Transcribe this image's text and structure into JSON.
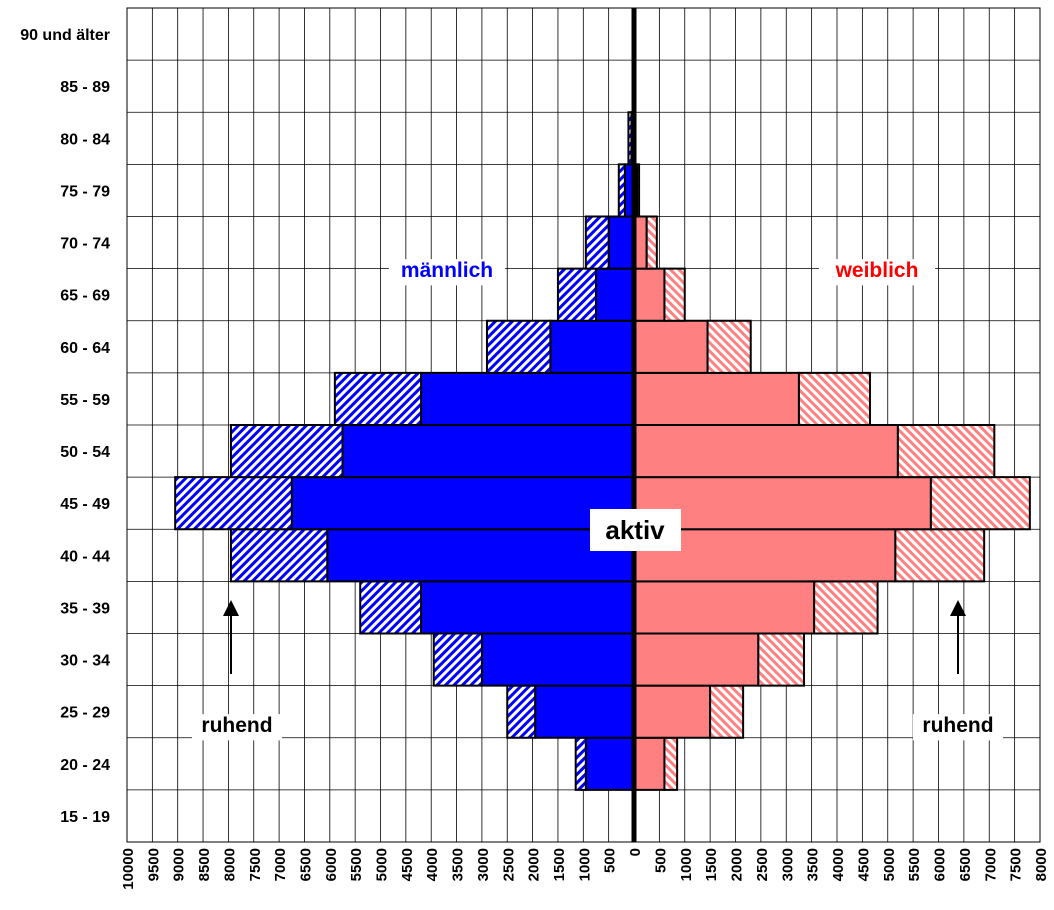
{
  "chart_data": {
    "type": "bar",
    "orientation": "horizontal",
    "layout": "population-pyramid",
    "categories": [
      "15 - 19",
      "20 - 24",
      "25 - 29",
      "30 - 34",
      "35 - 39",
      "40 - 44",
      "45 - 49",
      "50 - 54",
      "55 - 59",
      "60 - 64",
      "65 - 69",
      "70 - 74",
      "75 - 79",
      "80 - 84",
      "85 - 89",
      "90 und älter"
    ],
    "xlim_left": [
      10000,
      0
    ],
    "xlim_right": [
      0,
      8000
    ],
    "x_ticks_left": [
      "10000",
      "9500",
      "9000",
      "8500",
      "8000",
      "7500",
      "7000",
      "6500",
      "6000",
      "5500",
      "5000",
      "4500",
      "4000",
      "3500",
      "3000",
      "2500",
      "2000",
      "1500",
      "1000",
      "500",
      "0"
    ],
    "x_ticks_right": [
      "500",
      "1000",
      "1500",
      "2000",
      "2500",
      "3000",
      "3500",
      "4000",
      "4500",
      "5000",
      "5500",
      "6000",
      "6500",
      "7000",
      "7500",
      "8000"
    ],
    "grid": true,
    "series": [
      {
        "side": "left",
        "status": "aktiv",
        "color": "#0000ff",
        "pattern": "solid",
        "values": [
          0,
          950,
          1950,
          3000,
          4200,
          6050,
          6750,
          5750,
          4200,
          1650,
          750,
          500,
          180,
          50,
          0,
          0
        ]
      },
      {
        "side": "left",
        "status": "ruhend",
        "color": "#0000ff",
        "pattern": "hatched",
        "values": [
          0,
          200,
          550,
          950,
          1200,
          1900,
          2300,
          2200,
          1700,
          1250,
          750,
          450,
          120,
          60,
          0,
          0
        ]
      },
      {
        "side": "right",
        "status": "aktiv",
        "color": "#ff8080",
        "pattern": "solid",
        "values": [
          0,
          600,
          1500,
          2450,
          3550,
          5150,
          5850,
          5200,
          3250,
          1450,
          600,
          250,
          60,
          0,
          0,
          0
        ]
      },
      {
        "side": "right",
        "status": "ruhend",
        "color": "#ff8080",
        "pattern": "hatched",
        "values": [
          0,
          250,
          650,
          900,
          1250,
          1750,
          1950,
          1900,
          1400,
          850,
          400,
          200,
          40,
          0,
          0,
          0
        ]
      }
    ],
    "annotations": {
      "male": {
        "text": "männlich",
        "color": "#0000ff"
      },
      "female": {
        "text": "weiblich",
        "color": "#ff0000"
      },
      "active": {
        "text": "aktiv"
      },
      "resting_left": {
        "text": "ruhend"
      },
      "resting_right": {
        "text": "ruhend"
      }
    }
  }
}
